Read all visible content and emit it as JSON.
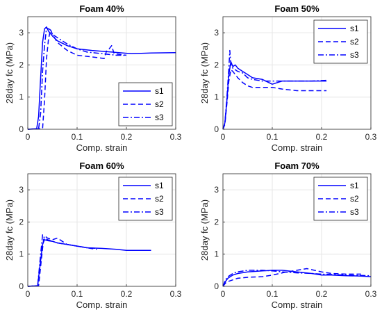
{
  "chart_data": [
    {
      "type": "line",
      "title": "Foam 40%",
      "xlabel": "Comp. strain",
      "ylabel": "28day fc (MPa)",
      "xlim": [
        0,
        0.3
      ],
      "ylim": [
        0,
        3.5
      ],
      "xticks": [
        "0",
        "0.1",
        "0.2",
        "0.3"
      ],
      "yticks": [
        "0",
        "1",
        "2",
        "3"
      ],
      "grid": true,
      "legend_position": "bottom-right",
      "color": "#0000ff",
      "series": [
        {
          "name": "s1",
          "style": "solid",
          "x": [
            0,
            0.018,
            0.022,
            0.026,
            0.03,
            0.034,
            0.038,
            0.042,
            0.05,
            0.06,
            0.08,
            0.1,
            0.13,
            0.17,
            0.21,
            0.25,
            0.3
          ],
          "y": [
            0,
            0.02,
            0.4,
            1.6,
            2.7,
            3.12,
            3.18,
            3.05,
            2.9,
            2.75,
            2.6,
            2.5,
            2.45,
            2.4,
            2.35,
            2.37,
            2.38
          ]
        },
        {
          "name": "s2",
          "style": "dashed",
          "x": [
            0,
            0.03,
            0.034,
            0.038,
            0.042,
            0.046,
            0.05,
            0.06,
            0.08,
            0.1,
            0.13,
            0.155,
            0.16,
            0.165,
            0.17,
            0.175,
            0.2
          ],
          "y": [
            0,
            0.02,
            0.9,
            2.2,
            2.8,
            3.1,
            2.95,
            2.7,
            2.45,
            2.3,
            2.25,
            2.2,
            2.45,
            2.5,
            2.6,
            2.35,
            2.3
          ]
        },
        {
          "name": "s3",
          "style": "dashdot",
          "x": [
            0,
            0.022,
            0.026,
            0.03,
            0.034,
            0.038,
            0.045,
            0.05,
            0.06,
            0.08,
            0.1,
            0.12,
            0.15,
            0.18,
            0.2
          ],
          "y": [
            0,
            0.02,
            0.5,
            1.8,
            2.6,
            3.15,
            3.1,
            2.95,
            2.85,
            2.65,
            2.5,
            2.4,
            2.35,
            2.3,
            2.3
          ]
        }
      ]
    },
    {
      "type": "line",
      "title": "Foam 50%",
      "xlabel": "Comp. strain",
      "ylabel": "28day fc (MPa)",
      "xlim": [
        0,
        0.3
      ],
      "ylim": [
        0,
        3.5
      ],
      "xticks": [
        "0",
        "0.1",
        "0.2",
        "0.3"
      ],
      "yticks": [
        "0",
        "1",
        "2",
        "3"
      ],
      "grid": true,
      "legend_position": "top-right",
      "color": "#0000ff",
      "series": [
        {
          "name": "s1",
          "style": "solid",
          "x": [
            0,
            0.004,
            0.008,
            0.012,
            0.016,
            0.02,
            0.025,
            0.03,
            0.04,
            0.05,
            0.06,
            0.08,
            0.1,
            0.12,
            0.15,
            0.18,
            0.21
          ],
          "y": [
            0,
            0.2,
            0.9,
            1.7,
            2.1,
            1.95,
            2.0,
            1.9,
            1.8,
            1.7,
            1.6,
            1.55,
            1.4,
            1.5,
            1.5,
            1.5,
            1.5
          ]
        },
        {
          "name": "s2",
          "style": "dashed",
          "x": [
            0,
            0.004,
            0.008,
            0.012,
            0.016,
            0.02,
            0.03,
            0.04,
            0.05,
            0.06,
            0.08,
            0.1,
            0.12,
            0.15,
            0.18,
            0.21
          ],
          "y": [
            0,
            0.15,
            0.8,
            1.5,
            1.85,
            1.8,
            1.6,
            1.45,
            1.35,
            1.3,
            1.3,
            1.3,
            1.25,
            1.2,
            1.2,
            1.2
          ]
        },
        {
          "name": "s3",
          "style": "dashdot",
          "x": [
            0,
            0.004,
            0.008,
            0.012,
            0.014,
            0.016,
            0.02,
            0.03,
            0.04,
            0.05,
            0.06,
            0.08,
            0.1,
            0.12,
            0.15,
            0.18,
            0.21
          ],
          "y": [
            0,
            0.2,
            1.0,
            1.9,
            2.45,
            2.0,
            1.9,
            1.8,
            1.75,
            1.6,
            1.55,
            1.5,
            1.5,
            1.5,
            1.5,
            1.5,
            1.52
          ]
        }
      ]
    },
    {
      "type": "line",
      "title": "Foam 60%",
      "xlabel": "Comp. strain",
      "ylabel": "28day fc (MPa)",
      "xlim": [
        0,
        0.3
      ],
      "ylim": [
        0,
        3.5
      ],
      "xticks": [
        "0",
        "0.1",
        "0.2",
        "0.3"
      ],
      "yticks": [
        "0",
        "1",
        "2",
        "3"
      ],
      "grid": true,
      "legend_position": "top-right",
      "color": "#0000ff",
      "series": [
        {
          "name": "s1",
          "style": "solid",
          "x": [
            0,
            0.02,
            0.026,
            0.03,
            0.034,
            0.04,
            0.05,
            0.06,
            0.08,
            0.1,
            0.12,
            0.15,
            0.18,
            0.2,
            0.22,
            0.25
          ],
          "y": [
            0,
            0.02,
            0.8,
            1.3,
            1.45,
            1.42,
            1.4,
            1.35,
            1.3,
            1.25,
            1.2,
            1.18,
            1.15,
            1.12,
            1.12,
            1.12
          ]
        },
        {
          "name": "s2",
          "style": "dashed",
          "x": [
            0,
            0.022,
            0.028,
            0.032,
            0.036,
            0.04,
            0.05,
            0.06,
            0.07,
            0.08,
            0.1,
            0.12,
            0.14
          ],
          "y": [
            0,
            0.02,
            0.9,
            1.45,
            1.55,
            1.5,
            1.45,
            1.5,
            1.4,
            1.3,
            1.25,
            1.2,
            1.15
          ]
        },
        {
          "name": "s3",
          "style": "dashdot",
          "x": [
            0,
            0.02,
            0.026,
            0.03,
            0.034,
            0.04,
            0.05,
            0.06,
            0.08,
            0.1,
            0.12,
            0.14
          ],
          "y": [
            0,
            0.02,
            1.0,
            1.6,
            1.5,
            1.45,
            1.4,
            1.35,
            1.3,
            1.25,
            1.2,
            1.18
          ]
        }
      ]
    },
    {
      "type": "line",
      "title": "Foam 70%",
      "xlabel": "Comp. strain",
      "ylabel": "28day fc (MPa)",
      "xlim": [
        0,
        0.3
      ],
      "ylim": [
        0,
        3.5
      ],
      "xticks": [
        "0",
        "0.1",
        "0.2",
        "0.3"
      ],
      "yticks": [
        "0",
        "1",
        "2",
        "3"
      ],
      "grid": true,
      "legend_position": "top-right",
      "color": "#0000ff",
      "series": [
        {
          "name": "s1",
          "style": "solid",
          "x": [
            0,
            0.005,
            0.01,
            0.02,
            0.03,
            0.05,
            0.08,
            0.1,
            0.12,
            0.15,
            0.18,
            0.2,
            0.22,
            0.25,
            0.28,
            0.3
          ],
          "y": [
            0,
            0.15,
            0.25,
            0.35,
            0.4,
            0.45,
            0.48,
            0.5,
            0.5,
            0.45,
            0.4,
            0.35,
            0.35,
            0.33,
            0.32,
            0.3
          ]
        },
        {
          "name": "s2",
          "style": "dashed",
          "x": [
            0,
            0.005,
            0.01,
            0.02,
            0.03,
            0.05,
            0.08,
            0.1,
            0.13,
            0.15,
            0.17,
            0.2,
            0.22,
            0.25,
            0.28
          ],
          "y": [
            0,
            0.1,
            0.15,
            0.2,
            0.25,
            0.28,
            0.3,
            0.35,
            0.45,
            0.5,
            0.55,
            0.45,
            0.4,
            0.38,
            0.38
          ]
        },
        {
          "name": "s3",
          "style": "dashdot",
          "x": [
            0,
            0.005,
            0.01,
            0.02,
            0.03,
            0.05,
            0.08,
            0.1,
            0.12,
            0.15,
            0.18,
            0.2,
            0.25,
            0.3
          ],
          "y": [
            0,
            0.2,
            0.3,
            0.4,
            0.45,
            0.5,
            0.5,
            0.48,
            0.45,
            0.42,
            0.4,
            0.38,
            0.35,
            0.33
          ]
        }
      ]
    }
  ]
}
